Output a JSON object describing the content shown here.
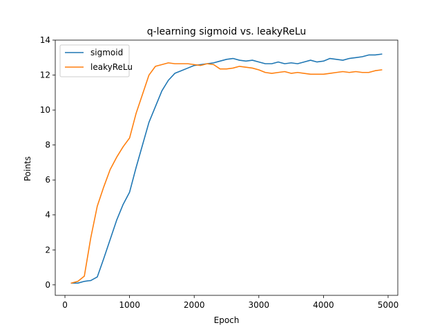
{
  "chart_data": {
    "type": "line",
    "title": "q-learning sigmoid vs. leakyReLu",
    "xlabel": "Epoch",
    "ylabel": "Points",
    "xlim": [
      -150,
      5150
    ],
    "ylim": [
      -0.6,
      14
    ],
    "xticks": [
      0,
      1000,
      2000,
      3000,
      4000,
      5000
    ],
    "yticks": [
      0,
      2,
      4,
      6,
      8,
      10,
      12,
      14
    ],
    "grid": false,
    "legend_position": "upper-left",
    "series": [
      {
        "name": "sigmoid",
        "color": "#1f77b4",
        "x": [
          100,
          200,
          300,
          400,
          500,
          600,
          700,
          800,
          900,
          1000,
          1100,
          1200,
          1300,
          1400,
          1500,
          1600,
          1700,
          1800,
          1900,
          2000,
          2100,
          2200,
          2300,
          2400,
          2500,
          2600,
          2700,
          2800,
          2900,
          3000,
          3100,
          3200,
          3300,
          3400,
          3500,
          3600,
          3700,
          3800,
          3900,
          4000,
          4100,
          4200,
          4300,
          4400,
          4500,
          4600,
          4700,
          4800,
          4900
        ],
        "y": [
          0.1,
          0.1,
          0.2,
          0.25,
          0.45,
          1.5,
          2.6,
          3.7,
          4.6,
          5.3,
          6.7,
          8.0,
          9.3,
          10.2,
          11.1,
          11.7,
          12.1,
          12.25,
          12.4,
          12.55,
          12.6,
          12.65,
          12.7,
          12.8,
          12.9,
          12.95,
          12.85,
          12.8,
          12.85,
          12.75,
          12.65,
          12.65,
          12.75,
          12.65,
          12.7,
          12.65,
          12.75,
          12.85,
          12.75,
          12.8,
          12.95,
          12.9,
          12.85,
          12.95,
          13.0,
          13.05,
          13.15,
          13.15,
          13.2
        ]
      },
      {
        "name": "leakyReLu",
        "color": "#ff7f0e",
        "x": [
          100,
          200,
          300,
          400,
          500,
          600,
          700,
          800,
          900,
          1000,
          1100,
          1200,
          1300,
          1400,
          1500,
          1600,
          1700,
          1800,
          1900,
          2000,
          2100,
          2200,
          2300,
          2400,
          2500,
          2600,
          2700,
          2800,
          2900,
          3000,
          3100,
          3200,
          3300,
          3400,
          3500,
          3600,
          3700,
          3800,
          3900,
          4000,
          4100,
          4200,
          4300,
          4400,
          4500,
          4600,
          4700,
          4800,
          4900
        ],
        "y": [
          0.1,
          0.2,
          0.5,
          2.7,
          4.5,
          5.6,
          6.6,
          7.3,
          7.9,
          8.4,
          9.8,
          10.9,
          12.0,
          12.5,
          12.6,
          12.7,
          12.65,
          12.65,
          12.65,
          12.6,
          12.55,
          12.65,
          12.6,
          12.35,
          12.35,
          12.4,
          12.5,
          12.45,
          12.4,
          12.3,
          12.15,
          12.1,
          12.15,
          12.2,
          12.1,
          12.15,
          12.1,
          12.05,
          12.05,
          12.05,
          12.1,
          12.15,
          12.2,
          12.15,
          12.2,
          12.15,
          12.15,
          12.25,
          12.3
        ]
      }
    ]
  }
}
